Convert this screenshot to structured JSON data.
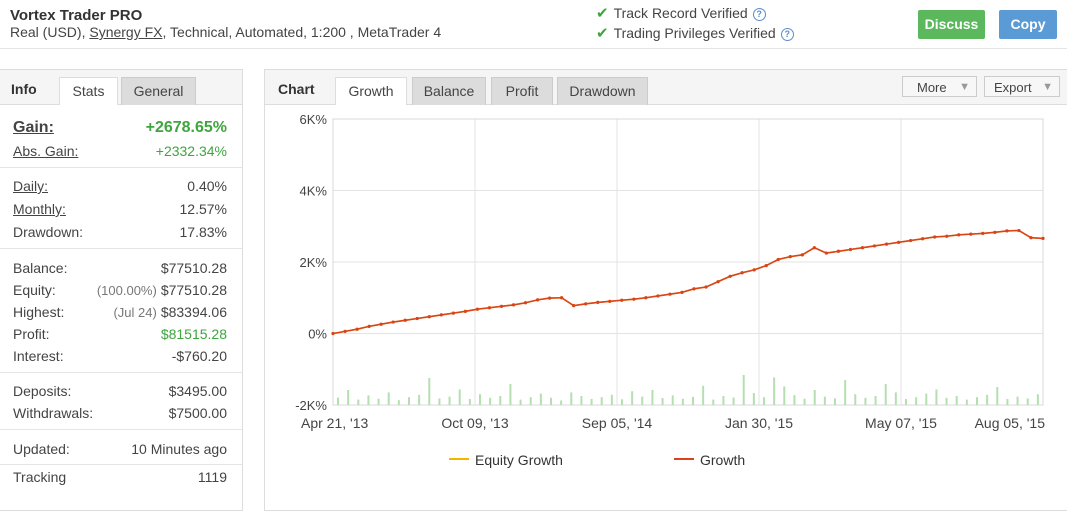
{
  "header": {
    "title": "Vortex Trader PRO",
    "subtitle_pre": "Real (USD),",
    "subtitle_link": "Synergy FX",
    "subtitle_post": ", Technical, Automated, 1:200 , MetaTrader 4",
    "verifications": [
      {
        "label": "Track Record Verified",
        "help": "?"
      },
      {
        "label": "Trading Privileges Verified",
        "help": "?"
      }
    ],
    "discuss_label": "Discuss",
    "copy_label": "Copy"
  },
  "left_panel": {
    "head": "Info",
    "tabs": [
      "Stats",
      "General"
    ],
    "stats": {
      "gain_label": "Gain:",
      "gain_value": "+2678.65%",
      "abs_gain_label": "Abs. Gain:",
      "abs_gain_value": "+2332.34%",
      "daily_label": "Daily:",
      "daily_value": "0.40%",
      "monthly_label": "Monthly:",
      "monthly_value": "12.57%",
      "drawdown_label": "Drawdown:",
      "drawdown_value": "17.83%",
      "balance_label": "Balance:",
      "balance_value": "$77510.28",
      "equity_label": "Equity:",
      "equity_note": "(100.00%)",
      "equity_value": "$77510.28",
      "highest_label": "Highest:",
      "highest_note": "(Jul 24)",
      "highest_value": "$83394.06",
      "profit_label": "Profit:",
      "profit_value": "$81515.28",
      "interest_label": "Interest:",
      "interest_value": "-$760.20",
      "deposits_label": "Deposits:",
      "deposits_value": "$3495.00",
      "withdrawals_label": "Withdrawals:",
      "withdrawals_value": "$7500.00",
      "updated_label": "Updated:",
      "updated_value": "10 Minutes ago",
      "tracking_label": "Tracking",
      "tracking_value": "1119"
    }
  },
  "chart_panel": {
    "head": "Chart",
    "tabs": [
      "Growth",
      "Balance",
      "Profit",
      "Drawdown"
    ],
    "more_label": "More",
    "export_label": "Export"
  },
  "colors": {
    "growth": "#d9441c",
    "equity": "#f5b400",
    "bars": "#b5dfb1",
    "green": "#3da63d",
    "accent_blue": "#5b9bd5"
  },
  "chart_data": {
    "type": "line",
    "title": "",
    "ylabel": "",
    "xlabel": "",
    "y_ticks": [
      "6K%",
      "4K%",
      "2K%",
      "0%",
      "-2K%"
    ],
    "y_tick_values": [
      6000,
      4000,
      2000,
      0,
      -2000
    ],
    "ylim": [
      -2000,
      6000
    ],
    "x_ticks": [
      "Apr 21, '13",
      "Oct 09, '13",
      "Sep 05, '14",
      "Jan 30, '15",
      "May 07, '15",
      "Aug 05, '15"
    ],
    "grid": true,
    "legend": [
      "Equity Growth",
      "Growth"
    ],
    "legend_position": "bottom",
    "series": [
      {
        "name": "Growth",
        "values": [
          0,
          60,
          120,
          200,
          260,
          320,
          370,
          420,
          470,
          520,
          570,
          620,
          680,
          720,
          760,
          800,
          860,
          940,
          990,
          1000,
          780,
          830,
          870,
          900,
          930,
          960,
          1000,
          1050,
          1100,
          1150,
          1250,
          1300,
          1450,
          1600,
          1700,
          1780,
          1900,
          2070,
          2150,
          2200,
          2400,
          2250,
          2300,
          2350,
          2400,
          2450,
          2500,
          2550,
          2600,
          2650,
          2700,
          2720,
          2760,
          2780,
          2800,
          2830,
          2870,
          2880,
          2680,
          2660
        ]
      },
      {
        "name": "Equity Growth",
        "values": [
          0,
          60,
          120,
          200,
          260,
          320,
          370,
          420,
          470,
          520,
          570,
          620,
          680,
          720,
          760,
          800,
          860,
          940,
          990,
          1000,
          780,
          830,
          870,
          900,
          930,
          960,
          1000,
          1050,
          1100,
          1150,
          1250,
          1300,
          1450,
          1600,
          1700,
          1780,
          1900,
          2070,
          2150,
          2200,
          2400,
          2250,
          2300,
          2350,
          2400,
          2450,
          2500,
          2550,
          2600,
          2650,
          2700,
          2720,
          2760,
          2780,
          2800,
          2830,
          2870,
          2880,
          2680,
          2660
        ]
      }
    ],
    "bar_values": [
      250,
      500,
      180,
      320,
      210,
      420,
      160,
      260,
      340,
      900,
      220,
      280,
      520,
      200,
      360,
      240,
      300,
      700,
      180,
      260,
      380,
      240,
      150,
      420,
      300,
      200,
      260,
      340,
      190,
      460,
      280,
      500,
      230,
      320,
      210,
      270,
      640,
      180,
      300,
      250,
      1000,
      400,
      260,
      920,
      620,
      330,
      210,
      500,
      280,
      220,
      830,
      360,
      240,
      300,
      700,
      420,
      200,
      260,
      380,
      520,
      240,
      300,
      180,
      260,
      340,
      600,
      200,
      280,
      220,
      360
    ]
  }
}
